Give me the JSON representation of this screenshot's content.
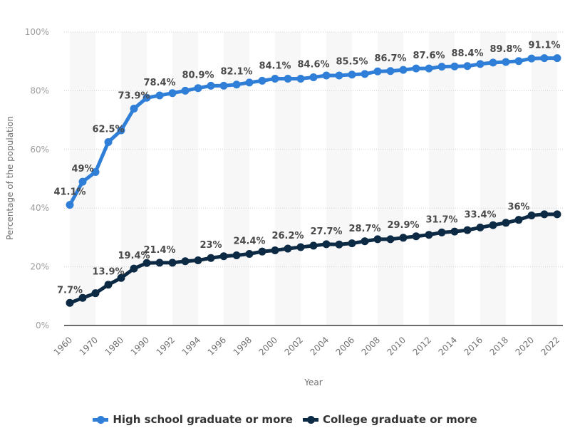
{
  "chart_data": {
    "type": "line",
    "title": "",
    "xlabel": "Year",
    "ylabel": "Percentage of the population",
    "ylim": [
      0,
      100
    ],
    "y_ticks": [
      "0%",
      "20%",
      "40%",
      "60%",
      "80%",
      "100%"
    ],
    "y_tick_values": [
      0,
      20,
      40,
      60,
      80,
      100
    ],
    "grid": true,
    "legend_position": "bottom",
    "x": [
      "1960",
      "1965",
      "1970",
      "1975",
      "1980",
      "1985",
      "1990",
      "1991",
      "1992",
      "1993",
      "1994",
      "1995",
      "1996",
      "1997",
      "1998",
      "1999",
      "2000",
      "2001",
      "2002",
      "2003",
      "2004",
      "2005",
      "2006",
      "2007",
      "2008",
      "2009",
      "2010",
      "2011",
      "2012",
      "2013",
      "2014",
      "2015",
      "2016",
      "2017",
      "2018",
      "2019",
      "2020",
      "2021",
      "2022"
    ],
    "x_tick_labels": [
      "1960",
      "1970",
      "1980",
      "1990",
      "1992",
      "1994",
      "1996",
      "1998",
      "2000",
      "2002",
      "2004",
      "2006",
      "2008",
      "2010",
      "2012",
      "2014",
      "2016",
      "2018",
      "2020",
      "2022"
    ],
    "series": [
      {
        "name": "High school graduate or more",
        "color": "#2f7ed8",
        "values": [
          41.1,
          49,
          52.3,
          62.5,
          66.5,
          73.9,
          77.6,
          78.4,
          79.2,
          80.0,
          80.9,
          81.7,
          81.7,
          82.1,
          82.8,
          83.4,
          84.1,
          84.1,
          84.1,
          84.6,
          85.2,
          85.2,
          85.5,
          85.7,
          86.6,
          86.7,
          87.1,
          87.6,
          87.6,
          88.2,
          88.3,
          88.4,
          89.1,
          89.6,
          89.8,
          90.1,
          91.0,
          91.1,
          91.1
        ],
        "labels": {
          "0": "41.1%",
          "1": "49%",
          "3": "62.5%",
          "5": "73.9%",
          "7": "78.4%",
          "10": "80.9%",
          "13": "82.1%",
          "16": "84.1%",
          "19": "84.6%",
          "22": "85.5%",
          "25": "86.7%",
          "28": "87.6%",
          "31": "88.4%",
          "34": "89.8%",
          "37": "91.1%"
        }
      },
      {
        "name": "College graduate or more",
        "color": "#0d2a45",
        "values": [
          7.7,
          9.4,
          11.0,
          13.9,
          16.2,
          19.4,
          21.3,
          21.4,
          21.4,
          21.9,
          22.2,
          23.0,
          23.6,
          23.9,
          24.4,
          25.2,
          25.6,
          26.2,
          26.7,
          27.2,
          27.7,
          27.6,
          28.0,
          28.7,
          29.4,
          29.4,
          29.9,
          30.4,
          30.9,
          31.7,
          32.0,
          32.5,
          33.4,
          34.2,
          35.0,
          36.0,
          37.5,
          37.9,
          37.9
        ],
        "labels": {
          "0": "7.7%",
          "3": "13.9%",
          "5": "19.4%",
          "7": "21.4%",
          "11": "23%",
          "14": "24.4%",
          "17": "26.2%",
          "20": "27.7%",
          "23": "28.7%",
          "26": "29.9%",
          "29": "31.7%",
          "32": "33.4%",
          "35": "36%"
        }
      }
    ]
  },
  "legend": {
    "items": [
      {
        "label": "High school graduate or more",
        "color": "#2f7ed8"
      },
      {
        "label": "College graduate or more",
        "color": "#0d2a45"
      }
    ]
  }
}
